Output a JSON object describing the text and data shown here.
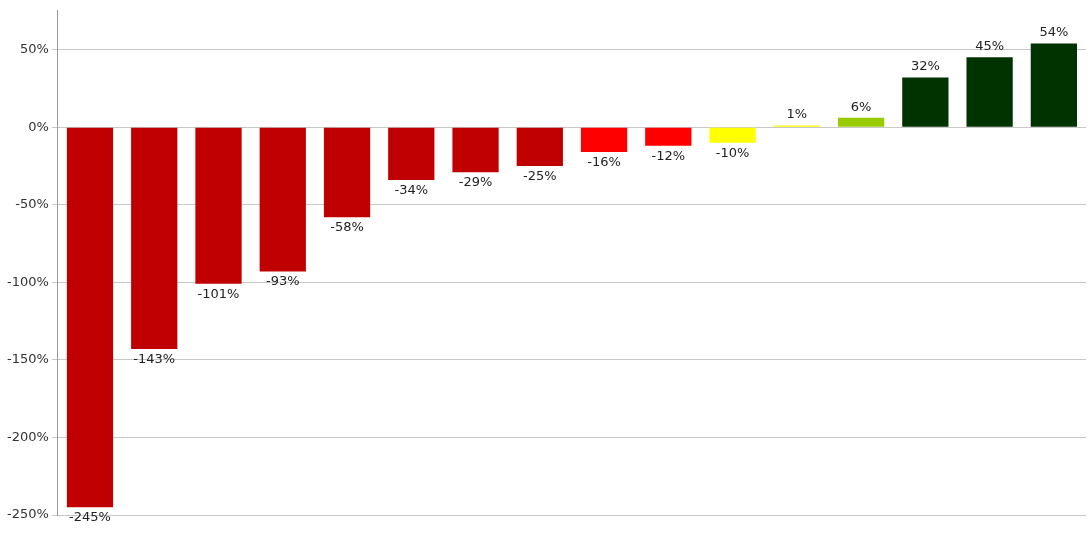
{
  "chart_data": {
    "type": "bar",
    "categories": [
      null,
      null,
      null,
      null,
      null,
      null,
      null,
      null,
      null,
      null,
      null,
      null,
      null,
      null,
      null,
      null
    ],
    "values": [
      -245,
      -143,
      -101,
      -93,
      -58,
      -34,
      -29,
      -25,
      -16,
      -12,
      -10,
      1,
      6,
      32,
      45,
      54
    ],
    "colors": [
      "#c00000",
      "#c00000",
      "#c00000",
      "#c00000",
      "#c00000",
      "#c00000",
      "#c00000",
      "#c00000",
      "#ff0000",
      "#ff0000",
      "#ffff00",
      "#ffff00",
      "#99cc00",
      "#003300",
      "#003300",
      "#003300"
    ],
    "value_labels": [
      "-245%",
      "-143%",
      "-101%",
      "-93%",
      "-58%",
      "-34%",
      "-29%",
      "-25%",
      "-16%",
      "-12%",
      "-10%",
      "1%",
      "6%",
      "32%",
      "45%",
      "54%"
    ],
    "ylim": [
      -250,
      75
    ],
    "yticks": [
      {
        "value": -250,
        "label": "-250%"
      },
      {
        "value": -200,
        "label": "-200%"
      },
      {
        "value": -150,
        "label": "-150%"
      },
      {
        "value": -100,
        "label": "-100%"
      },
      {
        "value": -50,
        "label": "-50%"
      },
      {
        "value": 0,
        "label": "0%"
      },
      {
        "value": 50,
        "label": "50%"
      }
    ],
    "grid": "y",
    "legend": false
  }
}
